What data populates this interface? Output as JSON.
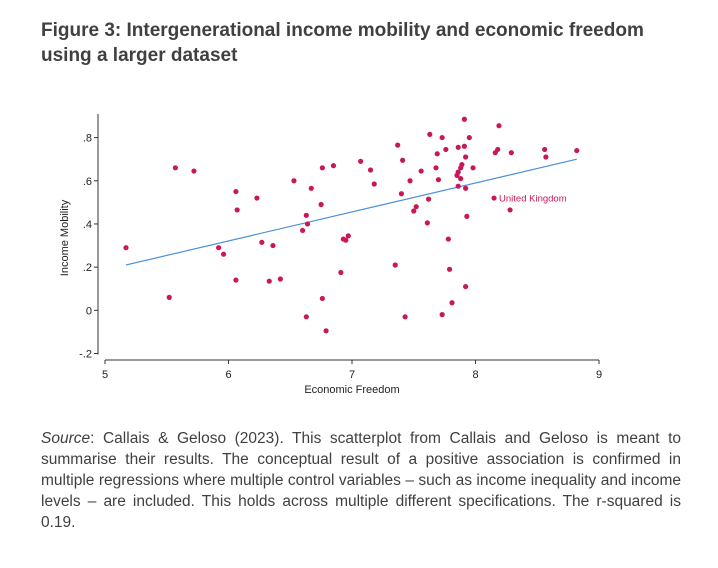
{
  "figure": {
    "title": "Figure 3: Intergenerational income mobility and economic freedom using a larger dataset",
    "caption": {
      "source_label": "Source",
      "text": ": Callais & Geloso (2023). This scatterplot from Callais and Geloso is meant to summarise their results. The conceptual result of a positive association is confirmed in multiple regressions where multiple control variables – such as income inequality and income levels – are included. This holds across multiple different specifications. The r-squared is 0.19."
    }
  },
  "colors": {
    "points": "#c8185a",
    "fit_line": "#4a90d9",
    "axis": "#333333"
  },
  "chart_data": {
    "type": "scatter",
    "title": "",
    "xlabel": "Economic Freedom",
    "ylabel": "Income Mobility",
    "xlim": [
      5,
      9
    ],
    "ylim": [
      -0.2,
      0.9
    ],
    "xticks": [
      5,
      6,
      7,
      8,
      9
    ],
    "xtick_labels": [
      "5",
      "6",
      "7",
      "8",
      "9"
    ],
    "yticks": [
      -0.2,
      0,
      0.2,
      0.4,
      0.6,
      0.8
    ],
    "ytick_labels": [
      "-.2",
      "0",
      ".2",
      ".4",
      ".6",
      ".8"
    ],
    "grid": false,
    "legend": "none",
    "fit_line": {
      "x": [
        5.17,
        8.82
      ],
      "y": [
        0.21,
        0.7
      ]
    },
    "annotations": [
      {
        "text": "United Kingdom",
        "x": 8.15,
        "y": 0.52
      }
    ],
    "points": [
      [
        5.17,
        0.29
      ],
      [
        5.52,
        0.06
      ],
      [
        5.57,
        0.66
      ],
      [
        5.72,
        0.645
      ],
      [
        5.92,
        0.29
      ],
      [
        5.96,
        0.26
      ],
      [
        6.06,
        0.55
      ],
      [
        6.07,
        0.465
      ],
      [
        6.06,
        0.14
      ],
      [
        6.23,
        0.52
      ],
      [
        6.27,
        0.315
      ],
      [
        6.33,
        0.135
      ],
      [
        6.36,
        0.3
      ],
      [
        6.42,
        0.145
      ],
      [
        6.53,
        0.6
      ],
      [
        6.6,
        0.37
      ],
      [
        6.63,
        0.44
      ],
      [
        6.64,
        0.4
      ],
      [
        6.63,
        -0.03
      ],
      [
        6.67,
        0.565
      ],
      [
        6.75,
        0.49
      ],
      [
        6.76,
        0.66
      ],
      [
        6.76,
        0.055
      ],
      [
        6.79,
        -0.095
      ],
      [
        6.85,
        0.67
      ],
      [
        6.91,
        0.175
      ],
      [
        6.93,
        0.33
      ],
      [
        6.95,
        0.325
      ],
      [
        6.97,
        0.345
      ],
      [
        7.07,
        0.69
      ],
      [
        7.15,
        0.65
      ],
      [
        7.18,
        0.585
      ],
      [
        7.35,
        0.21
      ],
      [
        7.37,
        0.765
      ],
      [
        7.41,
        0.695
      ],
      [
        7.4,
        0.54
      ],
      [
        7.43,
        -0.03
      ],
      [
        7.47,
        0.6
      ],
      [
        7.5,
        0.46
      ],
      [
        7.52,
        0.48
      ],
      [
        7.56,
        0.645
      ],
      [
        7.62,
        0.515
      ],
      [
        7.61,
        0.405
      ],
      [
        7.63,
        0.815
      ],
      [
        7.68,
        0.66
      ],
      [
        7.69,
        0.725
      ],
      [
        7.7,
        0.605
      ],
      [
        7.73,
        0.8
      ],
      [
        7.73,
        -0.02
      ],
      [
        7.76,
        0.745
      ],
      [
        7.78,
        0.33
      ],
      [
        7.79,
        0.19
      ],
      [
        7.81,
        0.035
      ],
      [
        7.85,
        0.625
      ],
      [
        7.86,
        0.64
      ],
      [
        7.86,
        0.575
      ],
      [
        7.86,
        0.755
      ],
      [
        7.88,
        0.61
      ],
      [
        7.88,
        0.66
      ],
      [
        7.89,
        0.675
      ],
      [
        7.91,
        0.885
      ],
      [
        7.91,
        0.76
      ],
      [
        7.92,
        0.71
      ],
      [
        7.92,
        0.565
      ],
      [
        7.92,
        0.11
      ],
      [
        7.93,
        0.435
      ],
      [
        7.95,
        0.8
      ],
      [
        7.98,
        0.66
      ],
      [
        8.16,
        0.73
      ],
      [
        8.18,
        0.745
      ],
      [
        8.19,
        0.855
      ],
      [
        8.28,
        0.465
      ],
      [
        8.29,
        0.73
      ],
      [
        8.56,
        0.745
      ],
      [
        8.57,
        0.71
      ],
      [
        8.82,
        0.74
      ]
    ]
  }
}
